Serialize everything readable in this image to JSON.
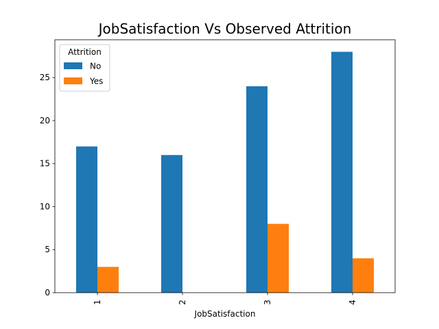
{
  "chart_data": {
    "type": "bar",
    "title": "JobSatisfaction Vs Observed Attrition",
    "xlabel": "JobSatisfaction",
    "ylabel": "",
    "categories": [
      "1",
      "2",
      "3",
      "4"
    ],
    "series": [
      {
        "name": "No",
        "values": [
          17,
          16,
          24,
          28
        ],
        "color": "#1f77b4"
      },
      {
        "name": "Yes",
        "values": [
          3,
          0,
          8,
          4
        ],
        "color": "#ff7f0e"
      }
    ],
    "ylim": [
      0,
      29.4
    ],
    "yticks": [
      0,
      5,
      10,
      15,
      20,
      25
    ],
    "legend": {
      "title": "Attrition",
      "placement": "top-left"
    },
    "grid": false
  }
}
